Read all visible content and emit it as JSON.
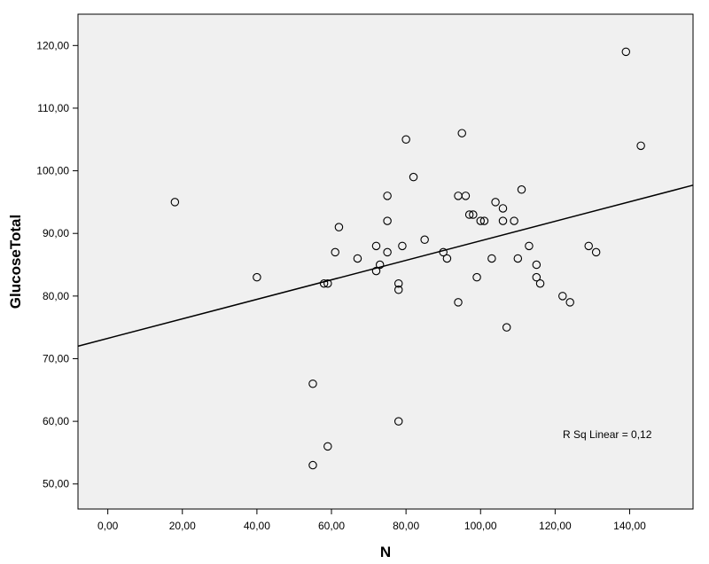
{
  "chart_data": {
    "type": "scatter",
    "title": "",
    "xlabel": "N",
    "ylabel": "GlucoseTotal",
    "xlim": [
      -8,
      157
    ],
    "ylim": [
      46,
      125
    ],
    "x_ticks": [
      "0,00",
      "20,00",
      "40,00",
      "60,00",
      "80,00",
      "100,00",
      "120,00",
      "140,00"
    ],
    "x_tick_values": [
      0,
      20,
      40,
      60,
      80,
      100,
      120,
      140
    ],
    "y_ticks": [
      "50,00",
      "60,00",
      "70,00",
      "80,00",
      "90,00",
      "100,00",
      "110,00",
      "120,00"
    ],
    "y_tick_values": [
      50,
      60,
      70,
      80,
      90,
      100,
      110,
      120
    ],
    "points": [
      {
        "x": 18,
        "y": 95
      },
      {
        "x": 40,
        "y": 83
      },
      {
        "x": 55,
        "y": 66
      },
      {
        "x": 55,
        "y": 53
      },
      {
        "x": 58,
        "y": 82
      },
      {
        "x": 59,
        "y": 82
      },
      {
        "x": 59,
        "y": 56
      },
      {
        "x": 61,
        "y": 87
      },
      {
        "x": 62,
        "y": 91
      },
      {
        "x": 67,
        "y": 86
      },
      {
        "x": 72,
        "y": 88
      },
      {
        "x": 72,
        "y": 84
      },
      {
        "x": 73,
        "y": 85
      },
      {
        "x": 75,
        "y": 96
      },
      {
        "x": 75,
        "y": 92
      },
      {
        "x": 75,
        "y": 87
      },
      {
        "x": 78,
        "y": 82
      },
      {
        "x": 78,
        "y": 81
      },
      {
        "x": 78,
        "y": 60
      },
      {
        "x": 79,
        "y": 88
      },
      {
        "x": 80,
        "y": 105
      },
      {
        "x": 82,
        "y": 99
      },
      {
        "x": 85,
        "y": 89
      },
      {
        "x": 90,
        "y": 87
      },
      {
        "x": 91,
        "y": 86
      },
      {
        "x": 94,
        "y": 96
      },
      {
        "x": 94,
        "y": 79
      },
      {
        "x": 95,
        "y": 106
      },
      {
        "x": 96,
        "y": 96
      },
      {
        "x": 97,
        "y": 93
      },
      {
        "x": 98,
        "y": 93
      },
      {
        "x": 99,
        "y": 83
      },
      {
        "x": 100,
        "y": 92
      },
      {
        "x": 101,
        "y": 92
      },
      {
        "x": 103,
        "y": 86
      },
      {
        "x": 104,
        "y": 95
      },
      {
        "x": 106,
        "y": 94
      },
      {
        "x": 106,
        "y": 92
      },
      {
        "x": 107,
        "y": 75
      },
      {
        "x": 109,
        "y": 92
      },
      {
        "x": 110,
        "y": 86
      },
      {
        "x": 111,
        "y": 97
      },
      {
        "x": 113,
        "y": 88
      },
      {
        "x": 115,
        "y": 85
      },
      {
        "x": 115,
        "y": 83
      },
      {
        "x": 116,
        "y": 82
      },
      {
        "x": 122,
        "y": 80
      },
      {
        "x": 124,
        "y": 79
      },
      {
        "x": 129,
        "y": 88
      },
      {
        "x": 131,
        "y": 87
      },
      {
        "x": 139,
        "y": 119
      },
      {
        "x": 143,
        "y": 104
      }
    ],
    "fit_line": {
      "x": [
        -8,
        157
      ],
      "y": [
        72.0,
        97.7
      ]
    },
    "annotation": "R Sq Linear = 0,12",
    "grid": false,
    "colors": {
      "plot_background": "#f0f0f0",
      "marker_stroke": "#000000",
      "line": "#000000"
    }
  }
}
